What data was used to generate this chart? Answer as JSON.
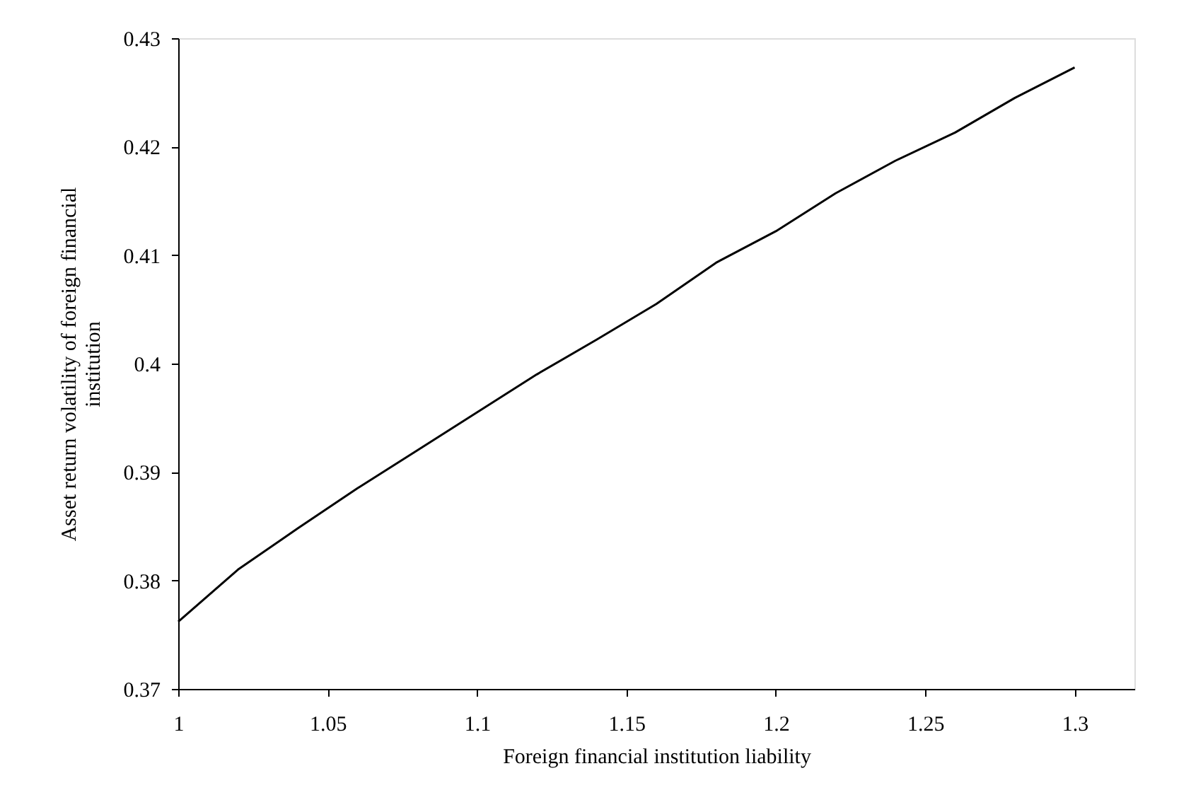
{
  "chart_data": {
    "type": "line",
    "xlabel": "Foreign financial institution liability",
    "ylabel": "Asset return volatility of foreign financial institution",
    "x": [
      1,
      1.02,
      1.04,
      1.06,
      1.08,
      1.1,
      1.12,
      1.14,
      1.16,
      1.18,
      1.2,
      1.22,
      1.24,
      1.26,
      1.28,
      1.3
    ],
    "series": [
      {
        "color": "#000000",
        "values": [
          0.3762,
          0.381,
          0.3848,
          0.3885,
          0.392,
          0.3955,
          0.399,
          0.4022,
          0.4055,
          0.4093,
          0.4122,
          0.4157,
          0.4187,
          0.4213,
          0.4245,
          0.4273
        ]
      }
    ],
    "xlim": [
      1,
      1.32
    ],
    "xticks": [
      1,
      1.05,
      1.1,
      1.15,
      1.2,
      1.25,
      1.3
    ],
    "ylim": [
      0.37,
      0.43
    ],
    "yticks": [
      0.37,
      0.38,
      0.39,
      0.4,
      0.41,
      0.42,
      0.43
    ],
    "grid": false,
    "marker": "none",
    "line_style": "solid"
  }
}
